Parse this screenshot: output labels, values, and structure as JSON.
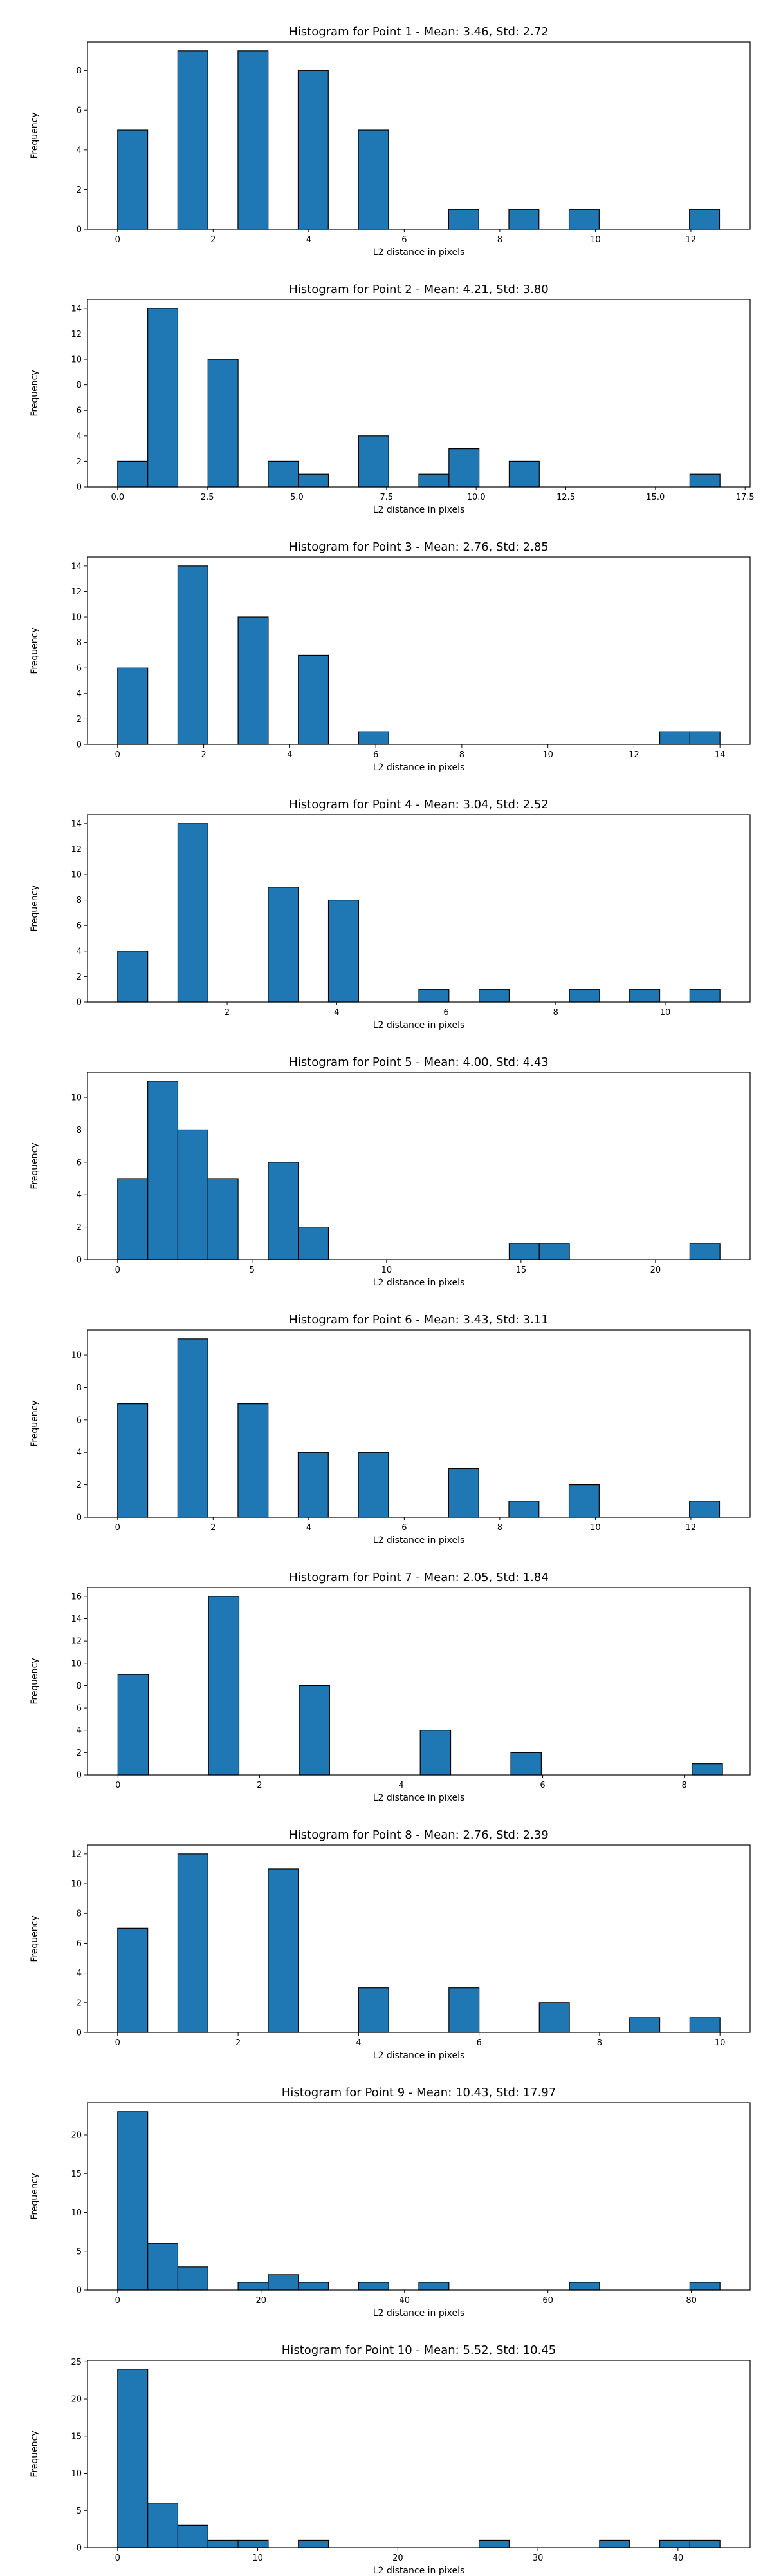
{
  "colors": {
    "bar": "#1f77b4",
    "edge": "#000000",
    "background": "#ffffff"
  },
  "chart_data": [
    {
      "type": "bar",
      "subtype": "histogram",
      "title": "Histogram for Point 1 - Mean: 3.46, Std: 2.72",
      "xlabel": "L2 distance in pixels",
      "ylabel": "Frequency",
      "xlim": [
        -0.63,
        13.24
      ],
      "ylim": [
        0,
        9.45
      ],
      "xticks": [
        0,
        2,
        4,
        6,
        8,
        10,
        12
      ],
      "xtick_labels": [
        "0",
        "2",
        "4",
        "6",
        "8",
        "10",
        "12"
      ],
      "yticks": [
        0,
        2,
        4,
        6,
        8
      ],
      "ytick_labels": [
        "0",
        "2",
        "4",
        "6",
        "8"
      ],
      "bins": [
        [
          0,
          0.63,
          5
        ],
        [
          1.26,
          1.89,
          9
        ],
        [
          2.52,
          3.15,
          9
        ],
        [
          3.78,
          4.41,
          8
        ],
        [
          5.04,
          5.67,
          5
        ],
        [
          6.93,
          7.56,
          1
        ],
        [
          8.19,
          8.82,
          1
        ],
        [
          9.45,
          10.08,
          1
        ],
        [
          11.97,
          12.6,
          1
        ]
      ]
    },
    {
      "type": "bar",
      "subtype": "histogram",
      "title": "Histogram for Point 2 - Mean: 4.21, Std: 3.80",
      "xlabel": "L2 distance in pixels",
      "ylabel": "Frequency",
      "xlim": [
        -0.84,
        17.64
      ],
      "ylim": [
        0,
        14.7
      ],
      "xticks": [
        0,
        2.5,
        5,
        7.5,
        10,
        12.5,
        15,
        17.5
      ],
      "xtick_labels": [
        "0.0",
        "2.5",
        "5.0",
        "7.5",
        "10.0",
        "12.5",
        "15.0",
        "17.5"
      ],
      "yticks": [
        0,
        2,
        4,
        6,
        8,
        10,
        12,
        14
      ],
      "ytick_labels": [
        "0",
        "2",
        "4",
        "6",
        "8",
        "10",
        "12",
        "14"
      ],
      "bins": [
        [
          0,
          0.84,
          2
        ],
        [
          0.84,
          1.68,
          14
        ],
        [
          2.52,
          3.36,
          10
        ],
        [
          4.2,
          5.04,
          2
        ],
        [
          5.04,
          5.88,
          1
        ],
        [
          6.72,
          7.56,
          4
        ],
        [
          8.4,
          9.24,
          1
        ],
        [
          9.24,
          10.08,
          3
        ],
        [
          10.92,
          11.76,
          2
        ],
        [
          15.96,
          16.8,
          1
        ]
      ]
    },
    {
      "type": "bar",
      "subtype": "histogram",
      "title": "Histogram for Point 3 - Mean: 2.76, Std: 2.85",
      "xlabel": "L2 distance in pixels",
      "ylabel": "Frequency",
      "xlim": [
        -0.7,
        14.7
      ],
      "ylim": [
        0,
        14.7
      ],
      "xticks": [
        0,
        2,
        4,
        6,
        8,
        10,
        12,
        14
      ],
      "xtick_labels": [
        "0",
        "2",
        "4",
        "6",
        "8",
        "10",
        "12",
        "14"
      ],
      "yticks": [
        0,
        2,
        4,
        6,
        8,
        10,
        12,
        14
      ],
      "ytick_labels": [
        "0",
        "2",
        "4",
        "6",
        "8",
        "10",
        "12",
        "14"
      ],
      "bins": [
        [
          0,
          1,
          6
        ],
        [
          2,
          3,
          14
        ],
        [
          4,
          5,
          10
        ],
        [
          6,
          7,
          7
        ],
        [
          8,
          9,
          1
        ],
        [
          18,
          19,
          1
        ],
        [
          19,
          20,
          1
        ]
      ],
      "bin_scale": 0.7
    },
    {
      "type": "bar",
      "subtype": "histogram",
      "title": "Histogram for Point 4 - Mean: 3.04, Std: 2.52",
      "xlabel": "L2 distance in pixels",
      "ylabel": "Frequency",
      "xlim": [
        -0.55,
        11.55
      ],
      "ylim": [
        0,
        14.7
      ],
      "xticks": [
        2,
        4,
        6,
        8,
        10
      ],
      "xtick_labels": [
        "2",
        "4",
        "6",
        "8",
        "10"
      ],
      "yticks": [
        0,
        2,
        4,
        6,
        8,
        10,
        12,
        14
      ],
      "ytick_labels": [
        "0",
        "2",
        "4",
        "6",
        "8",
        "10",
        "12",
        "14"
      ],
      "bins": [
        [
          0,
          0.55,
          4
        ],
        [
          1.1,
          1.65,
          14
        ],
        [
          2.75,
          3.3,
          9
        ],
        [
          3.85,
          4.4,
          8
        ],
        [
          5.5,
          6.05,
          1
        ],
        [
          6.6,
          7.15,
          1
        ],
        [
          8.25,
          8.8,
          1
        ],
        [
          9.35,
          9.9,
          1
        ],
        [
          10.45,
          11,
          1
        ]
      ]
    },
    {
      "type": "bar",
      "subtype": "histogram",
      "title": "Histogram for Point 5 - Mean: 4.00, Std: 4.43",
      "xlabel": "L2 distance in pixels",
      "ylabel": "Frequency",
      "xlim": [
        -1.12,
        23.52
      ],
      "ylim": [
        0,
        11.55
      ],
      "xticks": [
        0,
        5,
        10,
        15,
        20
      ],
      "xtick_labels": [
        "0",
        "5",
        "10",
        "15",
        "20"
      ],
      "yticks": [
        0,
        2,
        4,
        6,
        8,
        10
      ],
      "ytick_labels": [
        "0",
        "2",
        "4",
        "6",
        "8",
        "10"
      ],
      "bins": [
        [
          0,
          1.12,
          5
        ],
        [
          1.12,
          2.24,
          11
        ],
        [
          2.24,
          3.36,
          8
        ],
        [
          3.36,
          4.48,
          5
        ],
        [
          5.6,
          6.72,
          6
        ],
        [
          6.72,
          7.84,
          2
        ],
        [
          14.56,
          15.68,
          1
        ],
        [
          15.68,
          16.8,
          1
        ],
        [
          21.28,
          22.4,
          1
        ]
      ]
    },
    {
      "type": "bar",
      "subtype": "histogram",
      "title": "Histogram for Point 6 - Mean: 3.43, Std: 3.11",
      "xlabel": "L2 distance in pixels",
      "ylabel": "Frequency",
      "xlim": [
        -0.63,
        13.24
      ],
      "ylim": [
        0,
        11.55
      ],
      "xticks": [
        0,
        2,
        4,
        6,
        8,
        10,
        12
      ],
      "xtick_labels": [
        "0",
        "2",
        "4",
        "6",
        "8",
        "10",
        "12"
      ],
      "yticks": [
        0,
        2,
        4,
        6,
        8,
        10
      ],
      "ytick_labels": [
        "0",
        "2",
        "4",
        "6",
        "8",
        "10"
      ],
      "bins": [
        [
          0,
          0.63,
          7
        ],
        [
          1.26,
          1.89,
          11
        ],
        [
          2.52,
          3.15,
          7
        ],
        [
          3.78,
          4.41,
          4
        ],
        [
          5.04,
          5.67,
          4
        ],
        [
          6.93,
          7.56,
          3
        ],
        [
          8.19,
          8.82,
          1
        ],
        [
          9.45,
          10.08,
          2
        ],
        [
          11.97,
          12.6,
          1
        ]
      ]
    },
    {
      "type": "bar",
      "subtype": "histogram",
      "title": "Histogram for Point 7 - Mean: 2.05, Std: 1.84",
      "xlabel": "L2 distance in pixels",
      "ylabel": "Frequency",
      "xlim": [
        -0.43,
        8.93
      ],
      "ylim": [
        0,
        16.8
      ],
      "xticks": [
        0,
        2,
        4,
        6,
        8
      ],
      "xtick_labels": [
        "0",
        "2",
        "4",
        "6",
        "8"
      ],
      "yticks": [
        0,
        2,
        4,
        6,
        8,
        10,
        12,
        14,
        16
      ],
      "ytick_labels": [
        "0",
        "2",
        "4",
        "6",
        "8",
        "10",
        "12",
        "14",
        "16"
      ],
      "bins": [
        [
          0,
          0.43,
          9
        ],
        [
          1.28,
          1.71,
          16
        ],
        [
          2.56,
          2.99,
          8
        ],
        [
          4.27,
          4.7,
          4
        ],
        [
          5.55,
          5.98,
          2
        ],
        [
          8.11,
          8.54,
          1
        ]
      ]
    },
    {
      "type": "bar",
      "subtype": "histogram",
      "title": "Histogram for Point 8 - Mean: 2.76, Std: 2.39",
      "xlabel": "L2 distance in pixels",
      "ylabel": "Frequency",
      "xlim": [
        -0.5,
        10.5
      ],
      "ylim": [
        0,
        12.6
      ],
      "xticks": [
        0,
        2,
        4,
        6,
        8,
        10
      ],
      "xtick_labels": [
        "0",
        "2",
        "4",
        "6",
        "8",
        "10"
      ],
      "yticks": [
        0,
        2,
        4,
        6,
        8,
        10,
        12
      ],
      "ytick_labels": [
        "0",
        "2",
        "4",
        "6",
        "8",
        "10",
        "12"
      ],
      "bins": [
        [
          0,
          0.5,
          7
        ],
        [
          1,
          1.5,
          12
        ],
        [
          2.5,
          3,
          11
        ],
        [
          4,
          4.5,
          3
        ],
        [
          5.5,
          6,
          3
        ],
        [
          7,
          7.5,
          2
        ],
        [
          8.5,
          9,
          1
        ],
        [
          9.5,
          10,
          1
        ]
      ]
    },
    {
      "type": "bar",
      "subtype": "histogram",
      "title": "Histogram for Point 9 - Mean: 10.43, Std: 17.97",
      "xlabel": "L2 distance in pixels",
      "ylabel": "Frequency",
      "xlim": [
        -4.2,
        88.2
      ],
      "ylim": [
        0,
        24.15
      ],
      "xticks": [
        0,
        20,
        40,
        60,
        80
      ],
      "xtick_labels": [
        "0",
        "20",
        "40",
        "60",
        "80"
      ],
      "yticks": [
        0,
        5,
        10,
        15,
        20
      ],
      "ytick_labels": [
        "0",
        "5",
        "10",
        "15",
        "20"
      ],
      "bins": [
        [
          0,
          4.2,
          23
        ],
        [
          4.2,
          8.4,
          6
        ],
        [
          8.4,
          12.6,
          3
        ],
        [
          16.8,
          21,
          1
        ],
        [
          21,
          25.2,
          2
        ],
        [
          25.2,
          29.4,
          1
        ],
        [
          33.6,
          37.8,
          1
        ],
        [
          42,
          46.2,
          1
        ],
        [
          63,
          67.2,
          1
        ],
        [
          79.8,
          84,
          1
        ]
      ]
    },
    {
      "type": "bar",
      "subtype": "histogram",
      "title": "Histogram for Point 10 - Mean: 5.52, Std: 10.45",
      "xlabel": "L2 distance in pixels",
      "ylabel": "Frequency",
      "xlim": [
        -2.15,
        45.15
      ],
      "ylim": [
        0,
        25.2
      ],
      "xticks": [
        0,
        10,
        20,
        30,
        40
      ],
      "xtick_labels": [
        "0",
        "10",
        "20",
        "30",
        "40"
      ],
      "yticks": [
        0,
        5,
        10,
        15,
        20,
        25
      ],
      "ytick_labels": [
        "0",
        "5",
        "10",
        "15",
        "20",
        "25"
      ],
      "bins": [
        [
          0,
          2.15,
          24
        ],
        [
          2.15,
          4.3,
          6
        ],
        [
          4.3,
          6.45,
          3
        ],
        [
          6.45,
          8.6,
          1
        ],
        [
          8.6,
          10.75,
          1
        ],
        [
          12.9,
          15.05,
          1
        ],
        [
          25.8,
          27.95,
          1
        ],
        [
          34.4,
          36.55,
          1
        ],
        [
          38.7,
          40.85,
          1
        ],
        [
          40.85,
          43,
          1
        ]
      ]
    }
  ]
}
